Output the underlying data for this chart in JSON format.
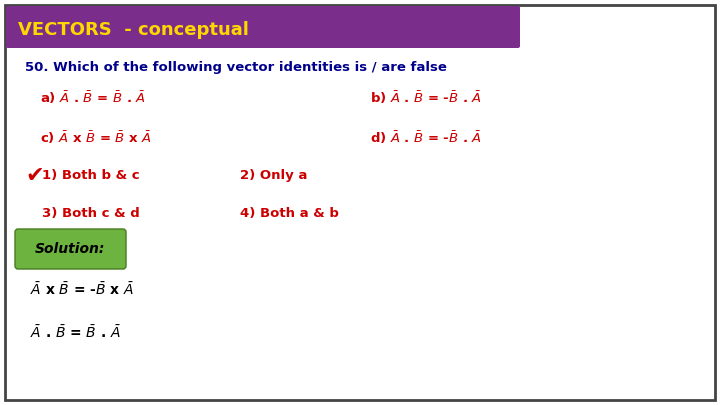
{
  "title": "VECTORS  - conceptual",
  "title_bg": "#7B2D8B",
  "title_color": "#FFD700",
  "question": "50. Which of the following vector identities is / are false",
  "question_color": "#00008B",
  "option_color": "#CC0000",
  "answer_color": "#CC0000",
  "solution_bg_top": "#8BC34A",
  "solution_bg_bot": "#558B2F",
  "solution_text_color": "#000000",
  "bg_color": "#FFFFFF",
  "border_color": "#444444",
  "checkmark_color": "#CC0000",
  "solution_label": "Solution:"
}
